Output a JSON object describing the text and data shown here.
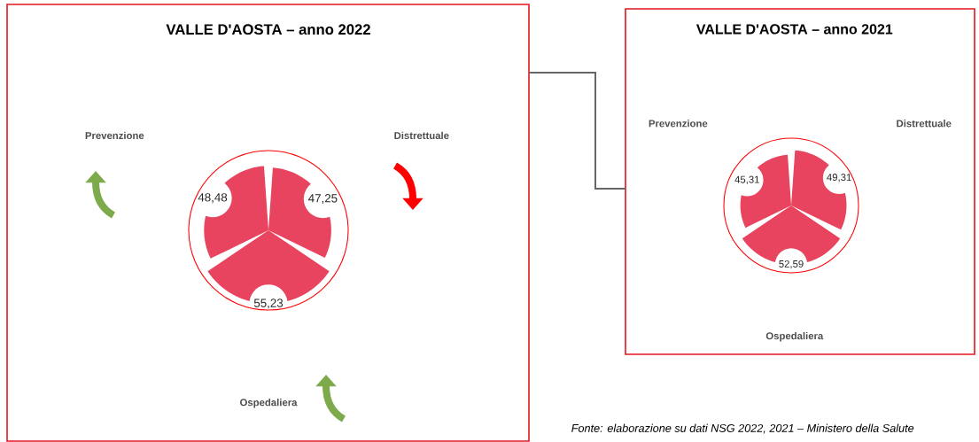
{
  "chart_data": [
    {
      "type": "other",
      "title": "VALLE D'AOSTA – anno 2022",
      "categories": [
        "Prevenzione",
        "Distrettuale",
        "Ospedaliera"
      ],
      "values": [
        48.48,
        47.25,
        55.23
      ],
      "value_labels": [
        "48,48",
        "47,25",
        "55,23"
      ],
      "color": "#e8435f"
    },
    {
      "type": "other",
      "title": "VALLE D'AOSTA – anno 2021",
      "categories": [
        "Prevenzione",
        "Distrettuale",
        "Ospedaliera"
      ],
      "values": [
        45.31,
        49.31,
        52.59
      ],
      "value_labels": [
        "45,31",
        "49,31",
        "52,59"
      ],
      "color": "#e8435f",
      "annotations": [
        "Fonte: elaborazione su dati NSG 2022, 2021 – Ministero della Salute"
      ]
    }
  ]
}
